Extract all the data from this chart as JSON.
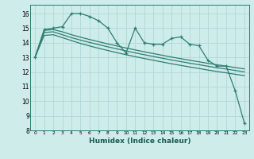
{
  "xlabel": "Humidex (Indice chaleur)",
  "ylabel": "",
  "xlim": [
    -0.5,
    23.5
  ],
  "ylim": [
    8,
    16.6
  ],
  "yticks": [
    8,
    9,
    10,
    11,
    12,
    13,
    14,
    15,
    16
  ],
  "xticks": [
    0,
    1,
    2,
    3,
    4,
    5,
    6,
    7,
    8,
    9,
    10,
    11,
    12,
    13,
    14,
    15,
    16,
    17,
    18,
    19,
    20,
    21,
    22,
    23
  ],
  "bg_color": "#ceecea",
  "grid_color": "#b0d8d4",
  "line_color": "#2e7d72",
  "series": {
    "line1": [
      13.0,
      14.9,
      15.0,
      15.1,
      16.0,
      16.0,
      15.8,
      15.5,
      15.0,
      14.0,
      13.3,
      15.0,
      14.0,
      13.9,
      13.9,
      14.3,
      14.4,
      13.9,
      13.8,
      12.8,
      12.4,
      12.4,
      10.7,
      8.5
    ],
    "line2": [
      13.0,
      14.85,
      14.9,
      14.75,
      14.55,
      14.38,
      14.22,
      14.07,
      13.92,
      13.78,
      13.64,
      13.51,
      13.38,
      13.26,
      13.14,
      13.02,
      12.91,
      12.8,
      12.7,
      12.59,
      12.49,
      12.4,
      12.3,
      12.21
    ],
    "line3": [
      13.0,
      14.7,
      14.75,
      14.55,
      14.35,
      14.18,
      14.02,
      13.87,
      13.72,
      13.58,
      13.44,
      13.31,
      13.18,
      13.06,
      12.94,
      12.82,
      12.71,
      12.6,
      12.5,
      12.39,
      12.29,
      12.2,
      12.1,
      12.01
    ],
    "line4": [
      13.0,
      14.5,
      14.55,
      14.35,
      14.15,
      13.95,
      13.78,
      13.62,
      13.47,
      13.32,
      13.18,
      13.05,
      12.92,
      12.8,
      12.68,
      12.56,
      12.45,
      12.34,
      12.24,
      12.13,
      12.03,
      11.94,
      11.84,
      11.75
    ]
  }
}
